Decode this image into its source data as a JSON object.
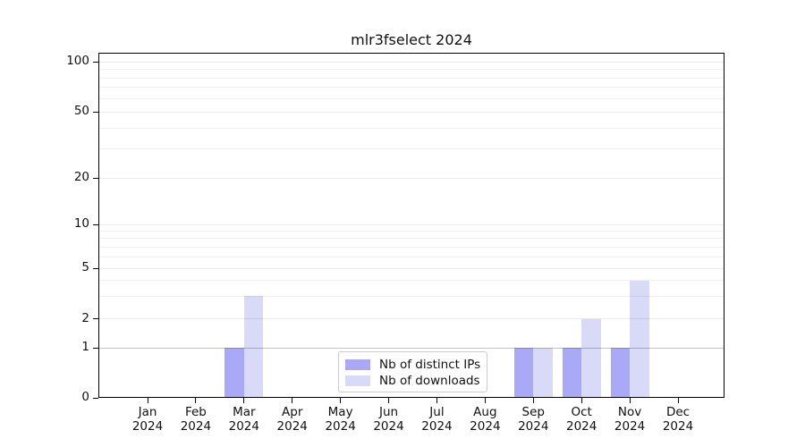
{
  "title": "mlr3fselect 2024",
  "colors": {
    "background": "#ffffff",
    "axis": "#000000",
    "distinct_ips_bar": "#a9a9f8",
    "downloads_bar": "#d9d9f8",
    "grid_minor": "rgba(0,0,0,0.055)",
    "grid_major": "rgba(0,0,0,0.085)",
    "grid_unit_line": "rgba(0,0,0,0.23)",
    "legend_border": "#cbcbcb"
  },
  "chart_data": {
    "type": "bar",
    "title": "mlr3fselect 2024",
    "categories": [
      "Jan",
      "Feb",
      "Mar",
      "Apr",
      "May",
      "Jun",
      "Jul",
      "Aug",
      "Sep",
      "Oct",
      "Nov",
      "Dec"
    ],
    "year_label": "2024",
    "series": [
      {
        "name": "Nb of distinct IPs",
        "color": "#a9a9f8",
        "values": [
          0,
          0,
          1,
          0,
          0,
          0,
          0,
          0,
          1,
          1,
          1,
          0
        ]
      },
      {
        "name": "Nb of downloads",
        "color": "#d9d9f8",
        "values": [
          0,
          0,
          3,
          0,
          0,
          0,
          0,
          0,
          1,
          2,
          4,
          0
        ]
      }
    ],
    "xlabel": "",
    "ylabel": "",
    "yscale": "log-like above 1, linear 0-1",
    "y_major_ticks": [
      0,
      1,
      2,
      5,
      10,
      20,
      50,
      100
    ],
    "y_minor_gridlines": [
      3,
      4,
      6,
      7,
      8,
      9,
      30,
      40,
      60,
      70,
      80,
      90
    ],
    "ylim": [
      0,
      110
    ],
    "grid": true,
    "legend_position": "lower center, inside plot"
  }
}
